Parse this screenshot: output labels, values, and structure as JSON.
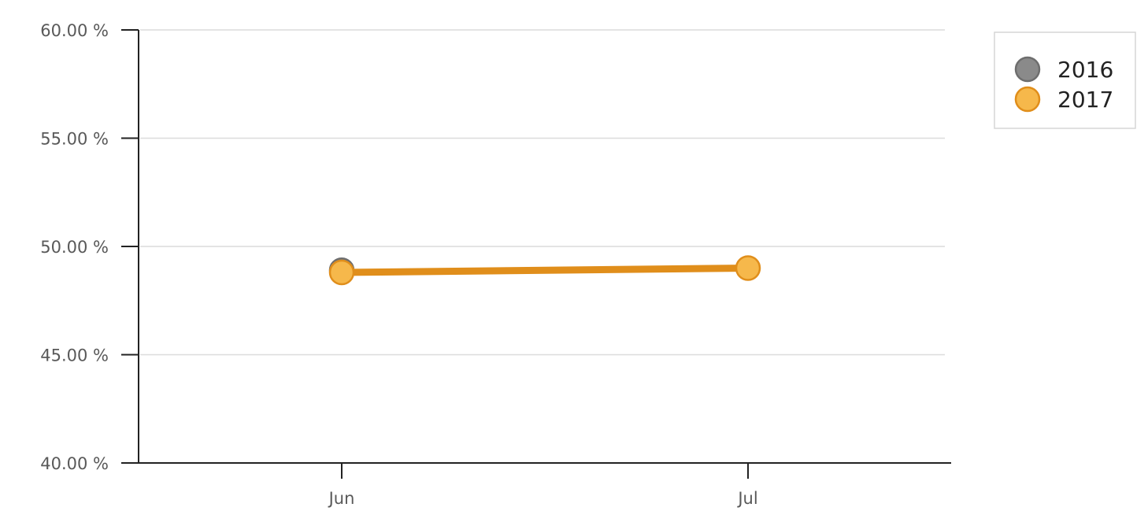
{
  "chart_data": {
    "type": "line",
    "title": "",
    "xlabel": "",
    "ylabel": "",
    "categories": [
      "Jun",
      "Jul"
    ],
    "y_ticks": [
      "60.00 %",
      "55.00 %",
      "50.00 %",
      "45.00 %",
      "40.00 %"
    ],
    "ylim": [
      40,
      60
    ],
    "grid": true,
    "legend_position": "top-right",
    "series": [
      {
        "name": "2016",
        "values": [
          48.9,
          null
        ],
        "color": "#8a8a8a",
        "stroke": "#6e6e6e"
      },
      {
        "name": "2017",
        "values": [
          48.8,
          49.0
        ],
        "color": "#f6b84b",
        "stroke": "#e08e1b"
      }
    ]
  }
}
